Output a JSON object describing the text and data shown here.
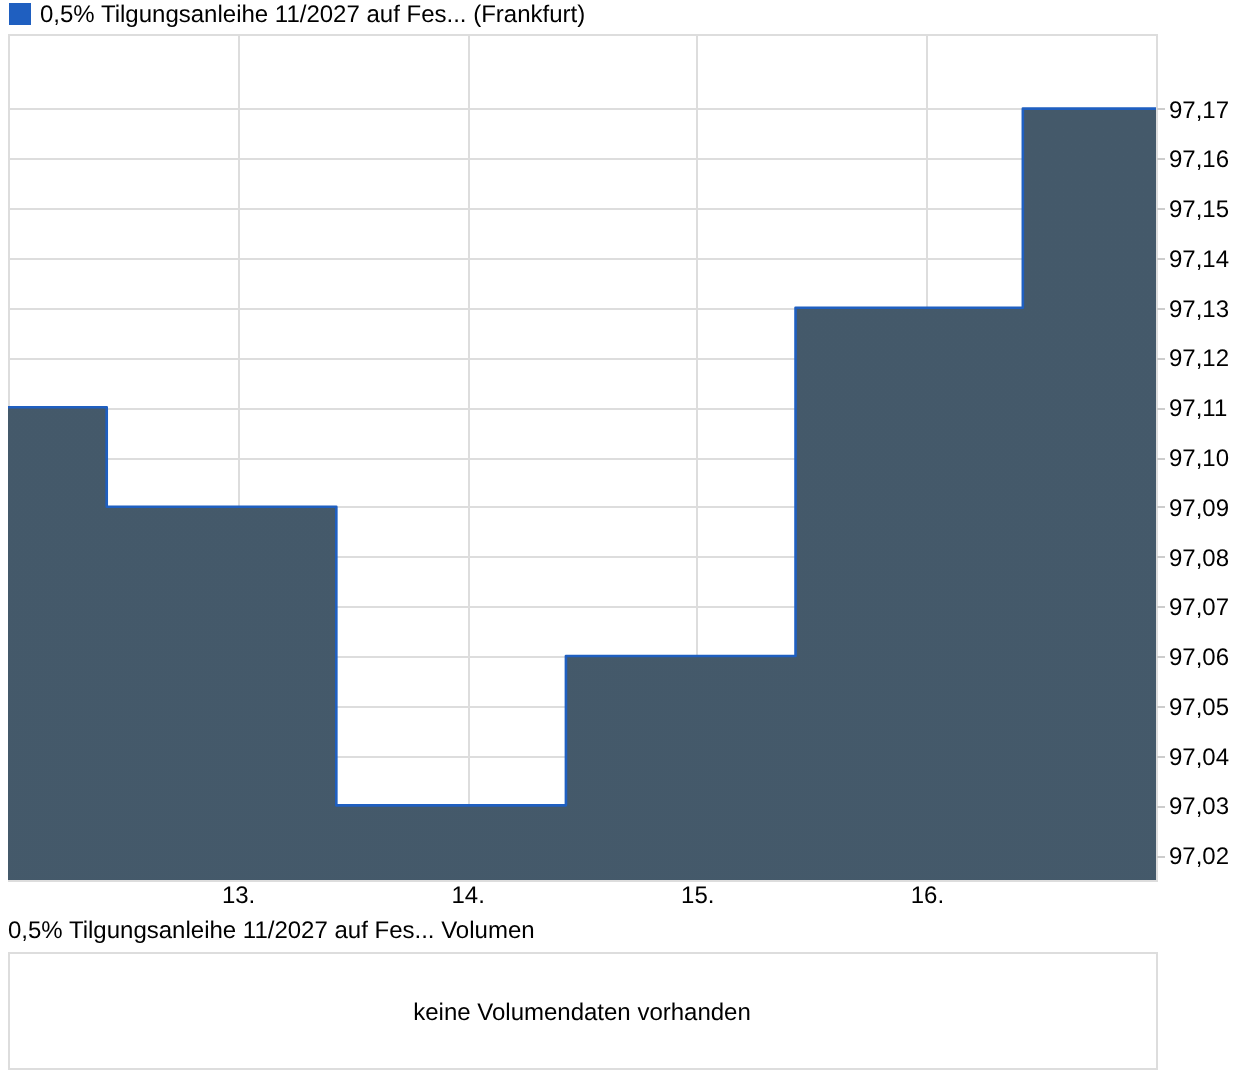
{
  "chart_data": [
    {
      "type": "step",
      "series": [
        {
          "name": "0,5% Tilgungsanleihe 11/2027 auf Fes... (Frankfurt)",
          "color": "#1f5fc0",
          "x": [
            12.0,
            12.43,
            13.43,
            14.43,
            15.43,
            16.42,
            17.0
          ],
          "values": [
            97.11,
            97.09,
            97.03,
            97.06,
            97.13,
            97.17,
            97.17
          ]
        }
      ],
      "xlim": [
        12.0,
        17.0
      ],
      "xticks": [
        {
          "value": 13,
          "label": "13."
        },
        {
          "value": 14,
          "label": "14."
        },
        {
          "value": 15,
          "label": "15."
        },
        {
          "value": 16,
          "label": "16."
        }
      ],
      "ylim": [
        97.015,
        97.185
      ],
      "yticks": [
        {
          "value": 97.02,
          "label": "97,02"
        },
        {
          "value": 97.03,
          "label": "97,03"
        },
        {
          "value": 97.04,
          "label": "97,04"
        },
        {
          "value": 97.05,
          "label": "97,05"
        },
        {
          "value": 97.06,
          "label": "97,06"
        },
        {
          "value": 97.07,
          "label": "97,07"
        },
        {
          "value": 97.08,
          "label": "97,08"
        },
        {
          "value": 97.09,
          "label": "97,09"
        },
        {
          "value": 97.1,
          "label": "97,10"
        },
        {
          "value": 97.11,
          "label": "97,11"
        },
        {
          "value": 97.12,
          "label": "97,12"
        },
        {
          "value": 97.13,
          "label": "97,13"
        },
        {
          "value": 97.14,
          "label": "97,14"
        },
        {
          "value": 97.15,
          "label": "97,15"
        },
        {
          "value": 97.16,
          "label": "97,16"
        },
        {
          "value": 97.17,
          "label": "97,17"
        }
      ],
      "grid": true,
      "legend": "top left"
    },
    {
      "type": "other",
      "title": "0,5% Tilgungsanleihe 11/2027 auf Fes... Volumen",
      "annotations": [
        "keine Volumendaten vorhanden"
      ]
    }
  ]
}
